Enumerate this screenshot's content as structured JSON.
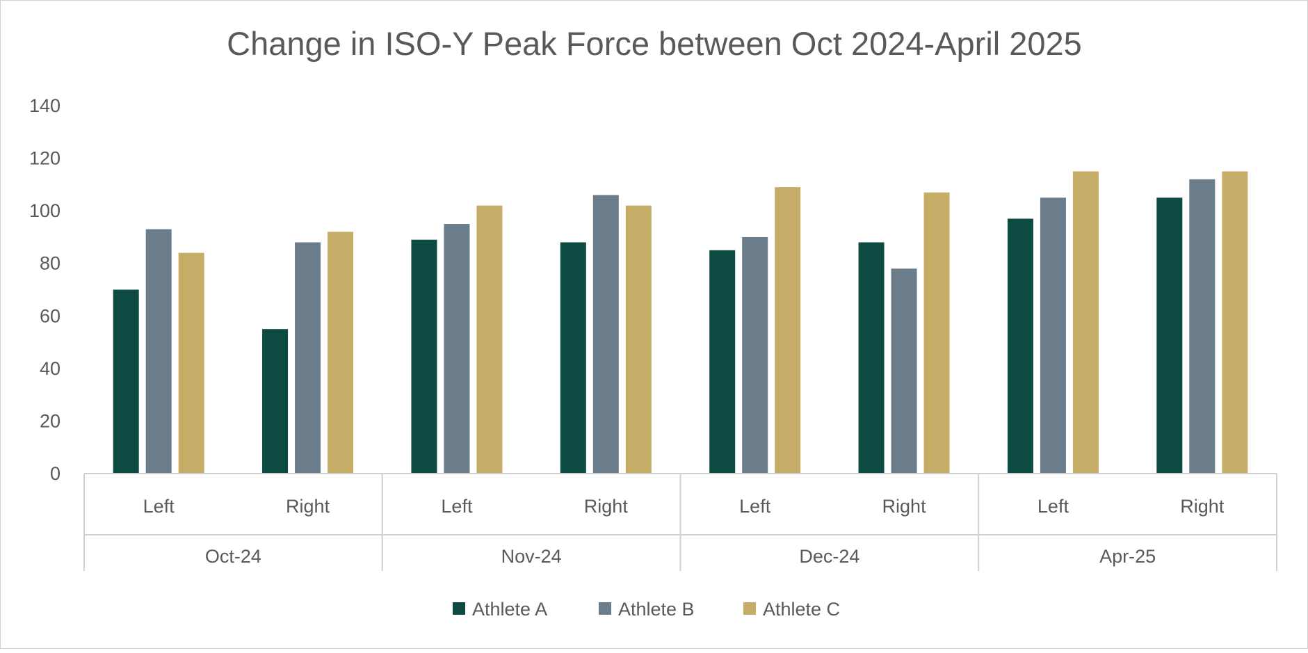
{
  "chart_data": {
    "type": "bar",
    "title": "Change in ISO-Y Peak Force between Oct 2024-April 2025",
    "xlabel": "",
    "ylabel": "",
    "ylim": [
      0,
      140
    ],
    "yticks": [
      "0",
      "20",
      "40",
      "60",
      "80",
      "100",
      "120",
      "140"
    ],
    "groups": [
      {
        "label": "Oct-24",
        "categories": [
          "Left",
          "Right"
        ]
      },
      {
        "label": "Nov-24",
        "categories": [
          "Left",
          "Right"
        ]
      },
      {
        "label": "Dec-24",
        "categories": [
          "Left",
          "Right"
        ]
      },
      {
        "label": "Apr-25",
        "categories": [
          "Left",
          "Right"
        ]
      }
    ],
    "series": [
      {
        "name": "Athlete A",
        "color": "#0c4a42",
        "values": [
          70,
          55,
          89,
          88,
          85,
          88,
          97,
          105
        ]
      },
      {
        "name": "Athlete B",
        "color": "#6b7d8b",
        "values": [
          93,
          88,
          95,
          106,
          90,
          78,
          105,
          112
        ]
      },
      {
        "name": "Athlete C",
        "color": "#c6ad67",
        "values": [
          84,
          92,
          102,
          102,
          109,
          107,
          115,
          115
        ]
      }
    ],
    "grid": false,
    "legend": "bottom"
  }
}
